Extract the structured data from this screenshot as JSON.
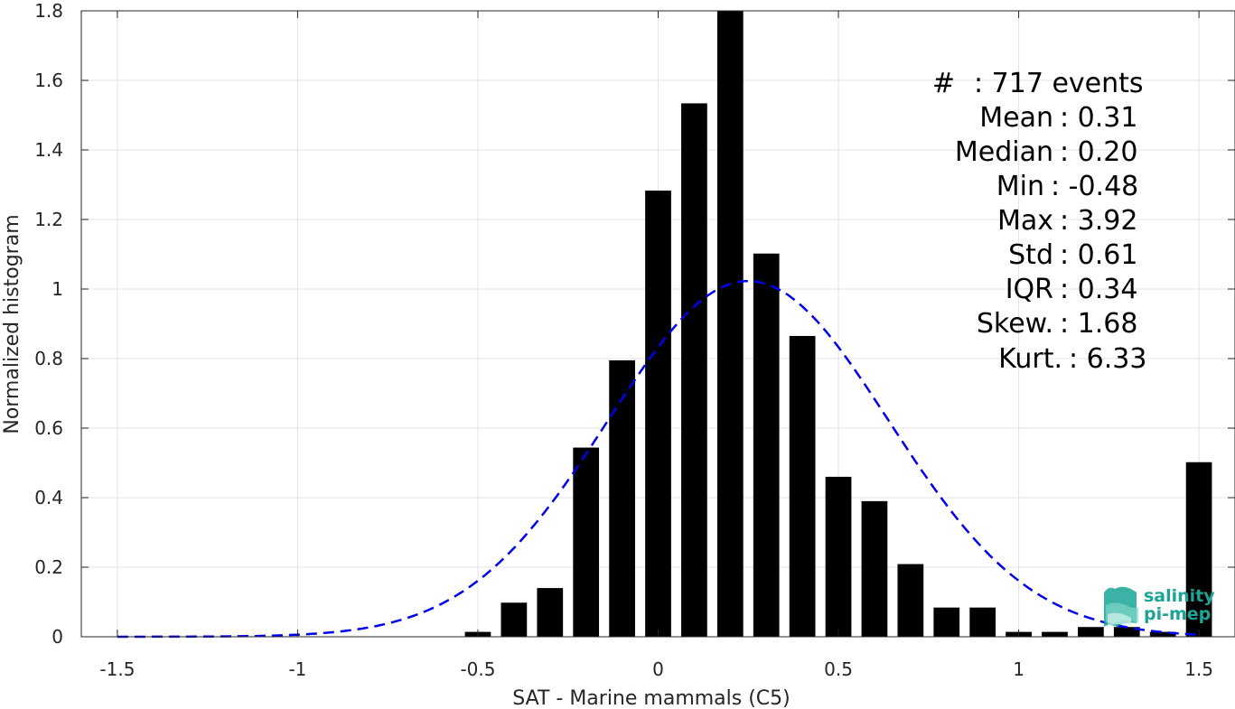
{
  "chart_data": {
    "type": "bar",
    "xlabel": "SAT - Marine mammals (C5)",
    "ylabel": "Normalized histogram",
    "xlim": [
      -1.6,
      1.6
    ],
    "ylim": [
      0,
      1.8
    ],
    "xticks": [
      -1.5,
      -1,
      -0.5,
      0,
      0.5,
      1,
      1.5
    ],
    "xtick_labels": [
      "-1.5",
      "-1",
      "-0.5",
      "0",
      "0.5",
      "1",
      "1.5"
    ],
    "yticks": [
      0,
      0.2,
      0.4,
      0.6,
      0.8,
      1,
      1.2,
      1.4,
      1.6,
      1.8
    ],
    "ytick_labels": [
      "0",
      "0.2",
      "0.4",
      "0.6",
      "0.8",
      "1",
      "1.2",
      "1.4",
      "1.6",
      "1.8"
    ],
    "grid": true,
    "bar_color": "#000000",
    "bin_width": 0.1,
    "bars": {
      "x": [
        -0.5,
        -0.4,
        -0.3,
        -0.2,
        -0.1,
        0.0,
        0.1,
        0.2,
        0.3,
        0.4,
        0.5,
        0.6,
        0.7,
        0.8,
        0.9,
        1.0,
        1.1,
        1.2,
        1.3,
        1.4,
        1.5
      ],
      "values": [
        0.014,
        0.098,
        0.14,
        0.544,
        0.795,
        1.283,
        1.534,
        1.8,
        1.102,
        0.865,
        0.46,
        0.39,
        0.209,
        0.084,
        0.084,
        0.014,
        0.014,
        0.028,
        0.028,
        0.014,
        0.502
      ]
    },
    "fit_curve": {
      "type": "gaussian",
      "mean": 0.25,
      "std": 0.39,
      "style": "dashed",
      "color": "#0000ee"
    },
    "stats": [
      {
        "label": "#",
        "value": ": 717 events"
      },
      {
        "label": "Mean",
        "value": ": 0.31"
      },
      {
        "label": "Median",
        "value": ": 0.20"
      },
      {
        "label": "Min",
        "value": ": -0.48"
      },
      {
        "label": "Max",
        "value": ": 3.92"
      },
      {
        "label": "Std",
        "value": ": 0.61"
      },
      {
        "label": "IQR",
        "value": ": 0.34"
      },
      {
        "label": "Skew.",
        "value": ": 1.68"
      },
      {
        "label": "Kurt.",
        "value": ": 6.33"
      }
    ]
  },
  "logo": {
    "line1": "salinity",
    "line2": "pi-mep",
    "color": "#1aa596"
  }
}
